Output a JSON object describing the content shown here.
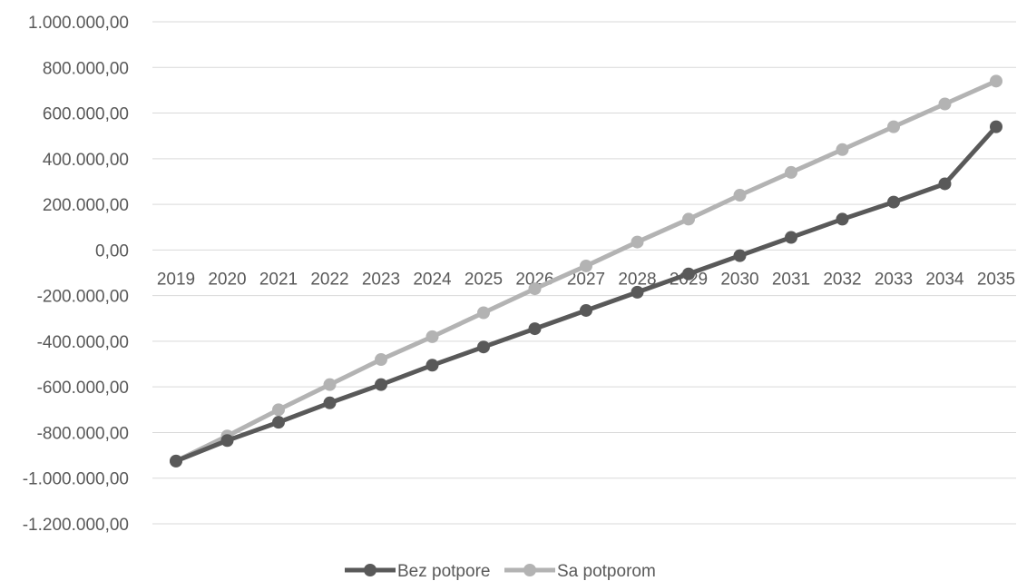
{
  "chart_data": {
    "type": "line",
    "categories": [
      "2019",
      "2020",
      "2021",
      "2022",
      "2023",
      "2024",
      "2025",
      "2026",
      "2027",
      "2028",
      "2029",
      "2030",
      "2031",
      "2032",
      "2033",
      "2034",
      "2035"
    ],
    "ylim": [
      -1200000,
      1000000
    ],
    "y_ticks": [
      "1.000.000,00",
      "800.000,00",
      "600.000,00",
      "400.000,00",
      "200.000,00",
      "0,00",
      "-200.000,00",
      "-400.000,00",
      "-600.000,00",
      "-800.000,00",
      "-1.000.000,00",
      "-1.200.000,00"
    ],
    "y_tick_values": [
      1000000,
      800000,
      600000,
      400000,
      200000,
      0,
      -200000,
      -400000,
      -600000,
      -800000,
      -1000000,
      -1200000
    ],
    "grid": true,
    "legend_position": "bottom",
    "series": [
      {
        "name": "Bez potpore",
        "color": "#595959",
        "values": [
          -925000,
          -835000,
          -755000,
          -670000,
          -590000,
          -505000,
          -425000,
          -345000,
          -265000,
          -185000,
          -105000,
          -25000,
          55000,
          135000,
          210000,
          290000,
          540000
        ]
      },
      {
        "name": "Sa potporom",
        "color": "#b3b3b3",
        "values": [
          -925000,
          -815000,
          -700000,
          -590000,
          -480000,
          -380000,
          -275000,
          -170000,
          -70000,
          35000,
          135000,
          240000,
          340000,
          440000,
          540000,
          640000,
          740000
        ]
      }
    ],
    "title": "",
    "xlabel": "",
    "ylabel": ""
  }
}
